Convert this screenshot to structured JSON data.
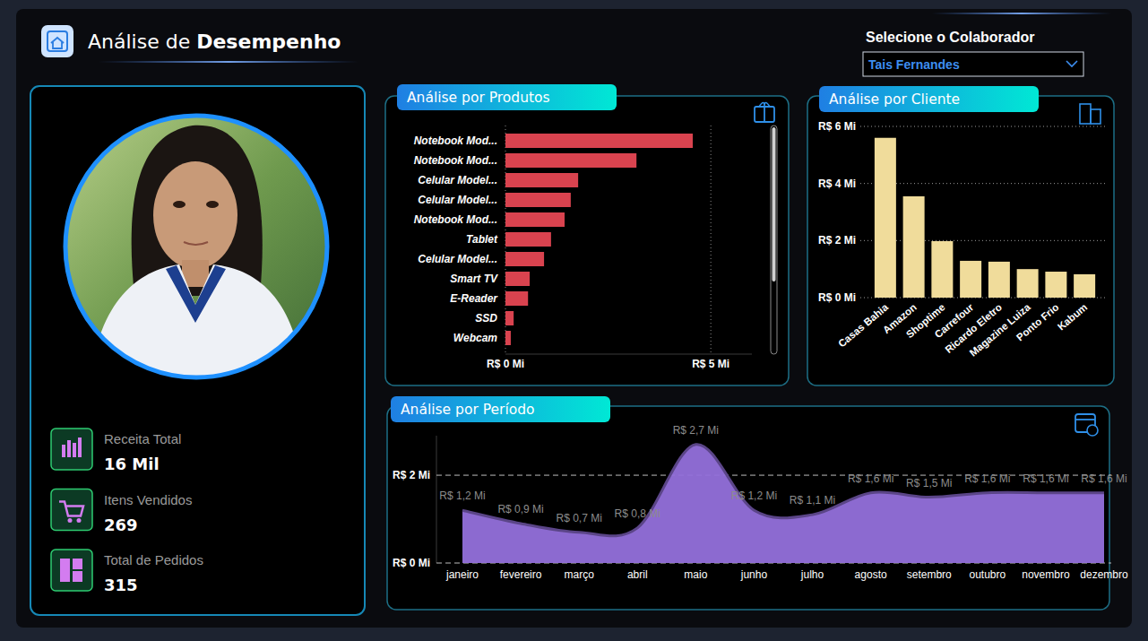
{
  "header": {
    "title_prefix": "Análise de",
    "title_emphasis": "Desempenho"
  },
  "selector": {
    "label": "Selecione o Colaborador",
    "selected": "Tais Fernandes"
  },
  "kpis": [
    {
      "label": "Receita Total",
      "value": "16 Mil"
    },
    {
      "label": "Itens Vendidos",
      "value": "269"
    },
    {
      "label": "Total de Pedidos",
      "value": "315"
    }
  ],
  "chart_data": [
    {
      "type": "bar",
      "title": "Análise por Produtos",
      "orientation": "horizontal",
      "categories": [
        "Notebook Mod...",
        "Notebook Mod...",
        "Celular Model...",
        "Celular Model...",
        "Notebook Mod...",
        "Tablet",
        "Celular Model...",
        "Smart TV",
        "E-Reader",
        "SSD",
        "Webcam"
      ],
      "values": [
        4560000,
        3190000,
        1770000,
        1590000,
        1440000,
        1110000,
        940000,
        590000,
        550000,
        200000,
        130000
      ],
      "color": "#d9434f",
      "xlim": [
        0,
        6000000
      ],
      "xticks": [
        {
          "value": 0,
          "label": "R$ 0 Mi"
        },
        {
          "value": 5000000,
          "label": "R$ 5 Mi"
        }
      ],
      "grid": true
    },
    {
      "type": "bar",
      "title": "Análise por Cliente",
      "categories": [
        "Casas Bahia",
        "Amazon",
        "Shoptime",
        "Carrefour",
        "Ricardo Eletro",
        "Magazine Luiza",
        "Ponto Frio",
        "Kabum"
      ],
      "values": [
        5600000,
        3550000,
        1980000,
        1290000,
        1260000,
        1000000,
        910000,
        820000
      ],
      "color": "#f0dc9b",
      "ylim": [
        0,
        6000000
      ],
      "yticks": [
        {
          "value": 0,
          "label": "R$ 0 Mi"
        },
        {
          "value": 2000000,
          "label": "R$ 2 Mi"
        },
        {
          "value": 4000000,
          "label": "R$ 4 Mi"
        },
        {
          "value": 6000000,
          "label": "R$ 6 Mi"
        }
      ],
      "grid": true
    },
    {
      "type": "area",
      "title": "Análise por Período",
      "categories": [
        "janeiro",
        "fevereiro",
        "março",
        "abril",
        "maio",
        "junho",
        "julho",
        "agosto",
        "setembro",
        "outubro",
        "novembro",
        "dezembro"
      ],
      "values": [
        1200000,
        900000,
        700000,
        800000,
        2700000,
        1200000,
        1100000,
        1600000,
        1500000,
        1600000,
        1600000,
        1600000
      ],
      "value_labels": [
        "R$ 1,2 Mi",
        "R$ 0,9 Mi",
        "R$ 0,7 Mi",
        "R$ 0,8 Mi",
        "R$ 2,7 Mi",
        "R$ 1,2 Mi",
        "R$ 1,1 Mi",
        "R$ 1,6 Mi",
        "R$ 1,5 Mi",
        "R$ 1,6 Mi",
        "R$ 1,6 Mi",
        "R$ 1,6 Mi"
      ],
      "data_labels": true,
      "color": "#9370db",
      "ylim": [
        0,
        2900000
      ],
      "yticks": [
        {
          "value": 0,
          "label": "R$ 0 Mi"
        },
        {
          "value": 2000000,
          "label": "R$ 2 Mi"
        }
      ],
      "grid": true
    }
  ]
}
